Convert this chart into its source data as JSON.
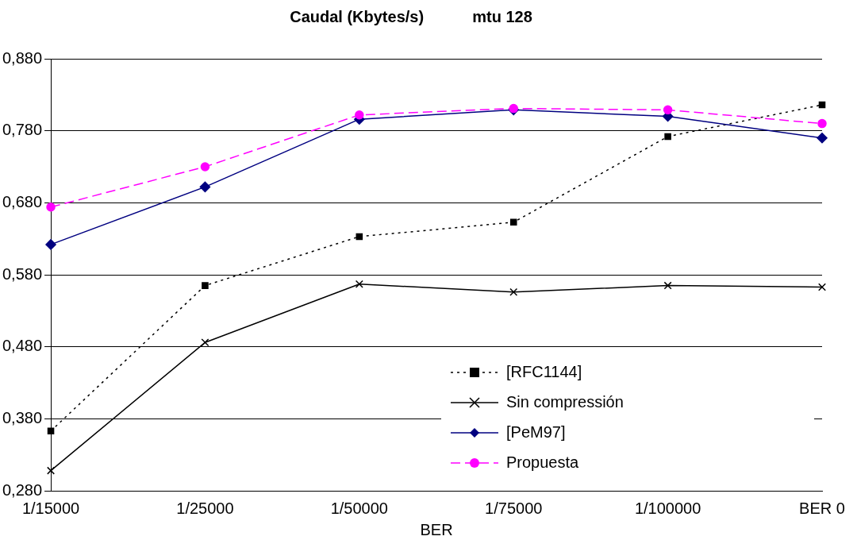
{
  "chart_data": {
    "type": "line",
    "title": "Caudal (Kbytes/s)           mtu 128",
    "xlabel": "BER",
    "categories": [
      "1/15000",
      "1/25000",
      "1/50000",
      "1/75000",
      "1/100000",
      "BER 0"
    ],
    "series": [
      {
        "name": "[RFC1144]",
        "color": "#000000",
        "marker": "square",
        "line_style": "dotted",
        "values": [
          0.363,
          0.565,
          0.633,
          0.653,
          0.772,
          0.816
        ]
      },
      {
        "name": "Sin compressión",
        "color": "#000000",
        "marker": "cross",
        "line_style": "solid",
        "values": [
          0.308,
          0.486,
          0.567,
          0.556,
          0.565,
          0.563
        ]
      },
      {
        "name": "[PeM97]",
        "color": "#000080",
        "marker": "diamond",
        "line_style": "solid",
        "values": [
          0.622,
          0.702,
          0.796,
          0.809,
          0.8,
          0.77
        ]
      },
      {
        "name": "Propuesta",
        "color": "#ff00ff",
        "marker": "circle",
        "line_style": "dashed",
        "values": [
          0.674,
          0.73,
          0.802,
          0.811,
          0.809,
          0.79
        ]
      }
    ],
    "ylim": [
      0.28,
      0.88
    ],
    "yticks": [
      {
        "value": 0.28,
        "label": "0,280"
      },
      {
        "value": 0.38,
        "label": "0,380"
      },
      {
        "value": 0.48,
        "label": "0,480"
      },
      {
        "value": 0.58,
        "label": "0,580"
      },
      {
        "value": 0.68,
        "label": "0,680"
      },
      {
        "value": 0.78,
        "label": "0,780"
      },
      {
        "value": 0.88,
        "label": "0,880"
      }
    ],
    "grid": "y",
    "legend": "bottom right"
  }
}
